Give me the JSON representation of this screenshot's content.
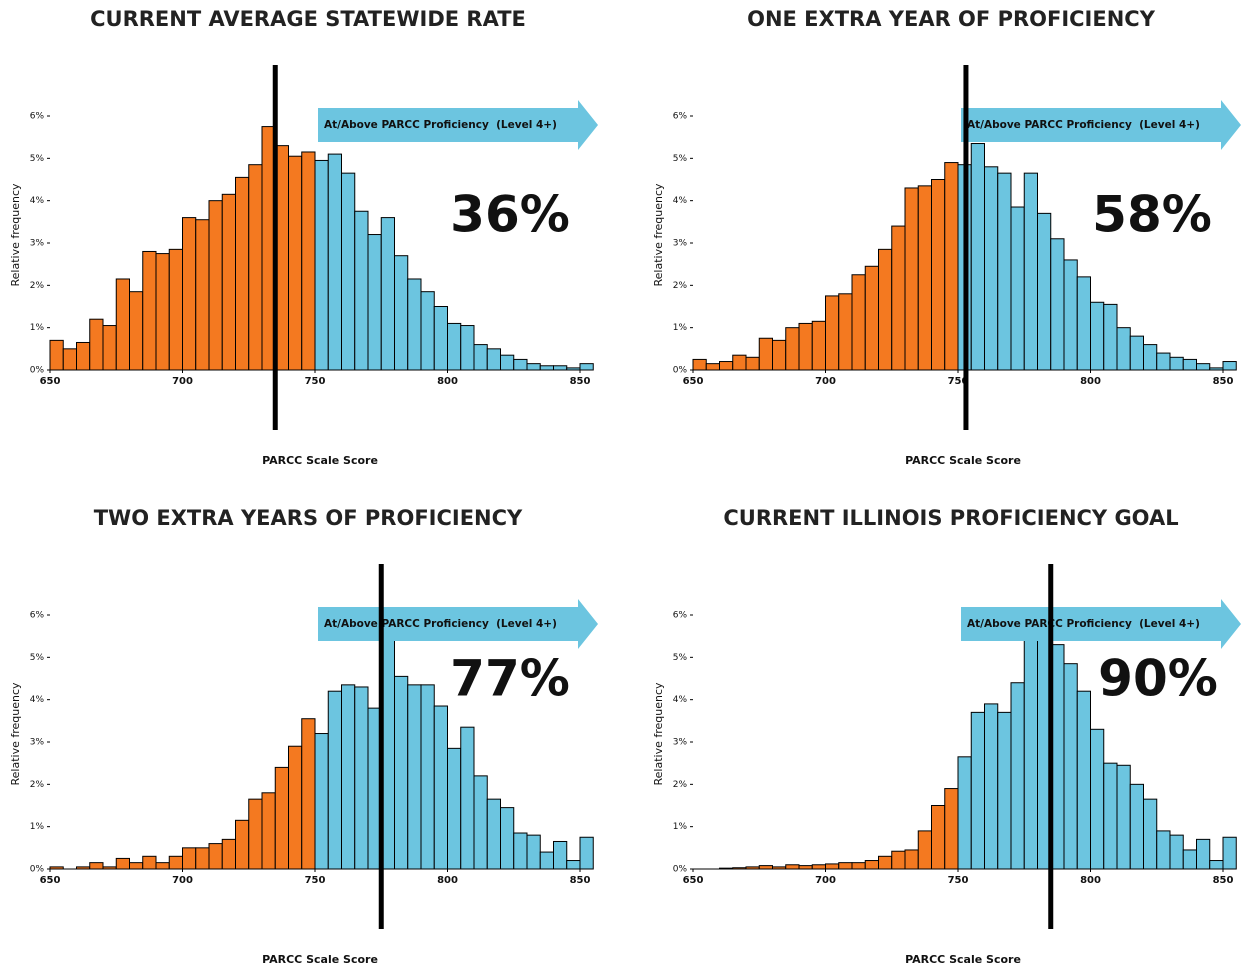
{
  "chart_data": [
    {
      "type": "histogram",
      "title": "CURRENT AVERAGE STATEWIDE RATE",
      "xlabel": "PARCC Scale Score",
      "ylabel": "Relative frequency",
      "annotation": "36%",
      "arrow_label": "At/Above PARCC Proficiency  (Level 4+)",
      "arrow_color": "#6cc5e0",
      "reference_line": 735,
      "reference_color": "#000000",
      "xlim": [
        650,
        855
      ],
      "xticks": [
        650,
        700,
        750,
        800,
        850
      ],
      "ylim": [
        0,
        6
      ],
      "yticks": [
        {
          "value": 0,
          "label": "0%"
        },
        {
          "value": 1,
          "label": "1%"
        },
        {
          "value": 2,
          "label": "2%"
        },
        {
          "value": 3,
          "label": "3%"
        },
        {
          "value": 4,
          "label": "4%"
        },
        {
          "value": 5,
          "label": "5%"
        },
        {
          "value": 6,
          "label": "6%"
        }
      ],
      "series": [
        {
          "color": "#f47920",
          "bins": [
            650,
            655,
            660,
            665,
            670,
            675,
            680,
            685,
            690,
            695,
            700,
            705,
            710,
            715,
            720,
            725,
            730,
            735,
            740,
            745,
            750
          ],
          "values": [
            0.7,
            0.5,
            0.65,
            1.2,
            1.05,
            2.15,
            1.85,
            2.8,
            2.75,
            2.85,
            3.6,
            3.55,
            4.0,
            4.15,
            4.55,
            4.85,
            5.75,
            5.3,
            5.05,
            5.15
          ]
        },
        {
          "color": "#6cc5e0",
          "bins": [
            750,
            755,
            760,
            765,
            770,
            775,
            780,
            785,
            790,
            795,
            800,
            805,
            810,
            815,
            820,
            825,
            830,
            835,
            840,
            845,
            850,
            855
          ],
          "values": [
            4.95,
            5.1,
            4.65,
            3.75,
            3.2,
            3.6,
            2.7,
            2.15,
            1.85,
            1.5,
            1.1,
            1.05,
            0.6,
            0.5,
            0.35,
            0.25,
            0.15,
            0.1,
            0.1,
            0.05,
            0.15
          ]
        }
      ]
    },
    {
      "type": "histogram",
      "title": "ONE EXTRA YEAR OF PROFICIENCY",
      "xlabel": "PARCC Scale Score",
      "ylabel": "Relative frequency",
      "annotation": "58%",
      "arrow_label": "At/Above PARCC Proficiency  (Level 4+)",
      "arrow_color": "#6cc5e0",
      "reference_line": 753,
      "reference_color": "#000000",
      "xlim": [
        650,
        855
      ],
      "xticks": [
        650,
        700,
        750,
        800,
        850
      ],
      "ylim": [
        0,
        6
      ],
      "yticks": [
        {
          "value": 0,
          "label": "0%"
        },
        {
          "value": 1,
          "label": "1%"
        },
        {
          "value": 2,
          "label": "2%"
        },
        {
          "value": 3,
          "label": "3%"
        },
        {
          "value": 4,
          "label": "4%"
        },
        {
          "value": 5,
          "label": "5%"
        },
        {
          "value": 6,
          "label": "6%"
        }
      ],
      "series": [
        {
          "color": "#f47920",
          "bins": [
            650,
            655,
            660,
            665,
            670,
            675,
            680,
            685,
            690,
            695,
            700,
            705,
            710,
            715,
            720,
            725,
            730,
            735,
            740,
            745,
            750
          ],
          "values": [
            0.25,
            0.15,
            0.2,
            0.35,
            0.3,
            0.75,
            0.7,
            1.0,
            1.1,
            1.15,
            1.75,
            1.8,
            2.25,
            2.45,
            2.85,
            3.4,
            4.3,
            4.35,
            4.5,
            4.9
          ]
        },
        {
          "color": "#6cc5e0",
          "bins": [
            750,
            755,
            760,
            765,
            770,
            775,
            780,
            785,
            790,
            795,
            800,
            805,
            810,
            815,
            820,
            825,
            830,
            835,
            840,
            845,
            850,
            855
          ],
          "values": [
            4.85,
            5.35,
            4.8,
            4.65,
            3.85,
            4.65,
            3.7,
            3.1,
            2.6,
            2.2,
            1.6,
            1.55,
            1.0,
            0.8,
            0.6,
            0.4,
            0.3,
            0.25,
            0.15,
            0.05,
            0.2
          ]
        }
      ]
    },
    {
      "type": "histogram",
      "title": "TWO EXTRA YEARS OF PROFICIENCY",
      "xlabel": "PARCC Scale Score",
      "ylabel": "Relative frequency",
      "annotation": "77%",
      "arrow_label": "At/Above PARCC Proficiency  (Level 4+)",
      "arrow_color": "#6cc5e0",
      "reference_line": 775,
      "reference_color": "#000000",
      "xlim": [
        650,
        855
      ],
      "xticks": [
        650,
        700,
        750,
        800,
        850
      ],
      "ylim": [
        0,
        6
      ],
      "yticks": [
        {
          "value": 0,
          "label": "0%"
        },
        {
          "value": 1,
          "label": "1%"
        },
        {
          "value": 2,
          "label": "2%"
        },
        {
          "value": 3,
          "label": "3%"
        },
        {
          "value": 4,
          "label": "4%"
        },
        {
          "value": 5,
          "label": "5%"
        },
        {
          "value": 6,
          "label": "6%"
        }
      ],
      "series": [
        {
          "color": "#f47920",
          "bins": [
            650,
            655,
            660,
            665,
            670,
            675,
            680,
            685,
            690,
            695,
            700,
            705,
            710,
            715,
            720,
            725,
            730,
            735,
            740,
            745,
            750
          ],
          "values": [
            0.05,
            0.0,
            0.05,
            0.15,
            0.05,
            0.25,
            0.15,
            0.3,
            0.15,
            0.3,
            0.5,
            0.5,
            0.6,
            0.7,
            1.15,
            1.65,
            1.8,
            2.4,
            2.9,
            3.55
          ]
        },
        {
          "color": "#6cc5e0",
          "bins": [
            750,
            755,
            760,
            765,
            770,
            775,
            780,
            785,
            790,
            795,
            800,
            805,
            810,
            815,
            820,
            825,
            830,
            835,
            840,
            845,
            850,
            855
          ],
          "values": [
            3.2,
            4.2,
            4.35,
            4.3,
            3.8,
            5.8,
            4.55,
            4.35,
            4.35,
            3.85,
            2.85,
            3.35,
            2.2,
            1.65,
            1.45,
            0.85,
            0.8,
            0.4,
            0.65,
            0.2,
            0.75
          ]
        }
      ]
    },
    {
      "type": "histogram",
      "title": "CURRENT ILLINOIS PROFICIENCY GOAL",
      "xlabel": "PARCC Scale Score",
      "ylabel": "Relative frequency",
      "annotation": "90%",
      "arrow_label": "At/Above PARCC Proficiency  (Level 4+)",
      "arrow_color": "#6cc5e0",
      "reference_line": 785,
      "reference_color": "#000000",
      "xlim": [
        650,
        855
      ],
      "xticks": [
        650,
        700,
        750,
        800,
        850
      ],
      "ylim": [
        0,
        6
      ],
      "yticks": [
        {
          "value": 0,
          "label": "0%"
        },
        {
          "value": 1,
          "label": "1%"
        },
        {
          "value": 2,
          "label": "2%"
        },
        {
          "value": 3,
          "label": "3%"
        },
        {
          "value": 4,
          "label": "4%"
        },
        {
          "value": 5,
          "label": "5%"
        },
        {
          "value": 6,
          "label": "6%"
        }
      ],
      "series": [
        {
          "color": "#f47920",
          "bins": [
            650,
            655,
            660,
            665,
            670,
            675,
            680,
            685,
            690,
            695,
            700,
            705,
            710,
            715,
            720,
            725,
            730,
            735,
            740,
            745,
            750
          ],
          "values": [
            0,
            0,
            0.02,
            0.03,
            0.05,
            0.08,
            0.05,
            0.1,
            0.08,
            0.1,
            0.12,
            0.15,
            0.15,
            0.2,
            0.3,
            0.42,
            0.45,
            0.9,
            1.5,
            1.9
          ]
        },
        {
          "color": "#6cc5e0",
          "bins": [
            750,
            755,
            760,
            765,
            770,
            775,
            780,
            785,
            790,
            795,
            800,
            805,
            810,
            815,
            820,
            825,
            830,
            835,
            840,
            845,
            850,
            855
          ],
          "values": [
            2.65,
            3.7,
            3.9,
            3.7,
            4.4,
            5.65,
            5.65,
            5.3,
            4.85,
            4.2,
            3.3,
            2.5,
            2.45,
            2.0,
            1.65,
            0.9,
            0.8,
            0.45,
            0.7,
            0.2,
            0.75
          ]
        }
      ]
    }
  ]
}
